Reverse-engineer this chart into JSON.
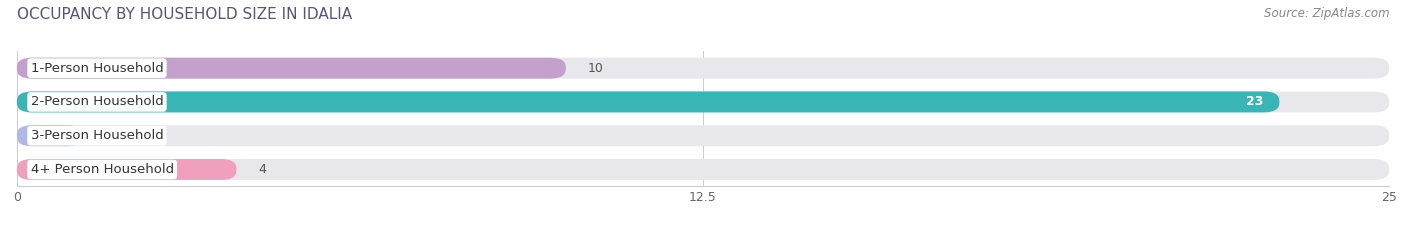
{
  "title": "OCCUPANCY BY HOUSEHOLD SIZE IN IDALIA",
  "source": "Source: ZipAtlas.com",
  "categories": [
    "1-Person Household",
    "2-Person Household",
    "3-Person Household",
    "4+ Person Household"
  ],
  "values": [
    10,
    23,
    0,
    4
  ],
  "bar_colors": [
    "#c4a0cc",
    "#3ab5b5",
    "#b0b8e8",
    "#f0a0bc"
  ],
  "bar_bg_color": "#e8e8ec",
  "xlim": [
    0,
    25
  ],
  "xticks": [
    0,
    12.5,
    25
  ],
  "xtick_labels": [
    "0",
    "12.5",
    "25"
  ],
  "bar_height": 0.62,
  "label_fontsize": 9.5,
  "title_fontsize": 11,
  "source_fontsize": 8.5,
  "value_fontsize": 9,
  "figure_bg": "#ffffff",
  "title_color": "#555577",
  "source_color": "#888888",
  "label_color": "#333333",
  "value_color_inside": "#ffffff",
  "value_color_outside": "#555555"
}
